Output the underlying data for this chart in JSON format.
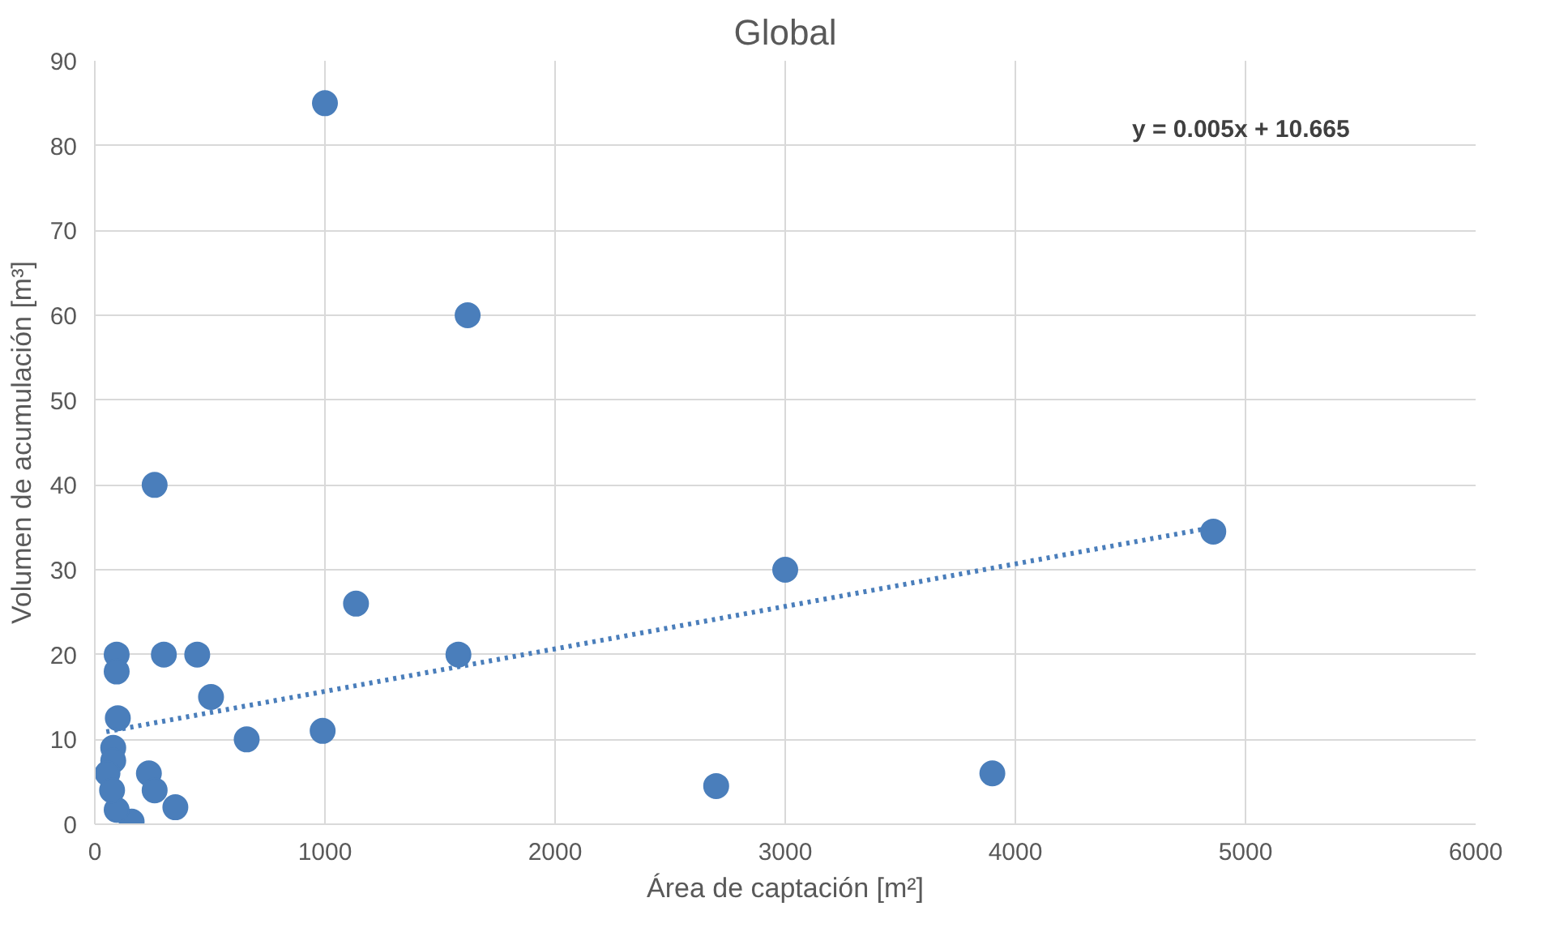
{
  "chart_data": {
    "type": "scatter",
    "title": "Global",
    "xlabel": "Área de captación [m²]",
    "ylabel": "Volumen de acumulación [m³]",
    "xlim": [
      0,
      6000
    ],
    "ylim": [
      0,
      90
    ],
    "xticks": [
      0,
      1000,
      2000,
      3000,
      4000,
      5000,
      6000
    ],
    "yticks": [
      0,
      10,
      20,
      30,
      40,
      50,
      60,
      70,
      80,
      90
    ],
    "grid": true,
    "marker": "circle",
    "series": [
      {
        "color": "#4a7ebb",
        "x": [
          260,
          95,
          95,
          300,
          445,
          1135,
          1580,
          505,
          660,
          990,
          100,
          80,
          80,
          55,
          235,
          260,
          350,
          160,
          95,
          75,
          1000,
          1620,
          2700,
          3000,
          3900,
          4860
        ],
        "values": [
          40,
          20,
          18,
          20,
          20,
          26,
          20,
          15,
          10,
          11,
          12.5,
          9,
          7.5,
          6,
          6,
          4,
          2,
          0.3,
          1.7,
          4,
          85,
          60,
          4.5,
          30,
          6,
          34.5
        ]
      },
      {
        "type": "line",
        "color": "#4a7ebb",
        "line_style": "dotted",
        "marker": "none",
        "x": [
          50,
          4860
        ],
        "values": [
          10.9,
          35.0
        ]
      }
    ],
    "annotations": [
      "y = 0.005x + 10.665"
    ]
  }
}
